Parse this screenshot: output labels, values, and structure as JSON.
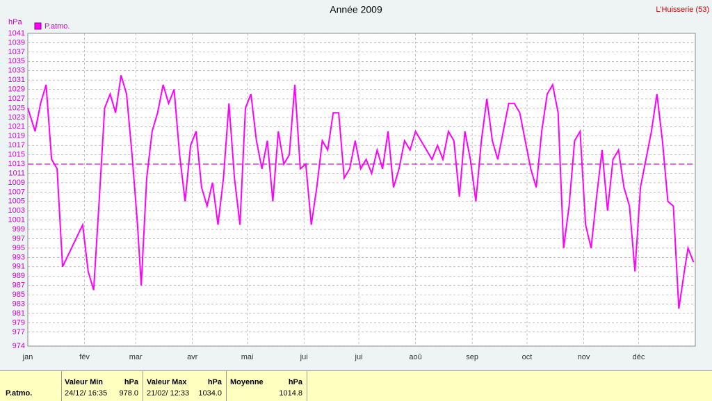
{
  "chart_data": {
    "type": "line",
    "title": "Année 2009",
    "station": "L'Huisserie (53)",
    "y_unit": "hPa",
    "grid": true,
    "xlim": [
      1,
      366
    ],
    "ylim": [
      974,
      1041
    ],
    "xticks": [
      {
        "value": 1,
        "label": "jan"
      },
      {
        "value": 32,
        "label": "fév"
      },
      {
        "value": 60,
        "label": "mar"
      },
      {
        "value": 91,
        "label": "avr"
      },
      {
        "value": 121,
        "label": "mai"
      },
      {
        "value": 152,
        "label": "jui"
      },
      {
        "value": 182,
        "label": "jui"
      },
      {
        "value": 213,
        "label": "aoû"
      },
      {
        "value": 244,
        "label": "sep"
      },
      {
        "value": 274,
        "label": "oct"
      },
      {
        "value": 305,
        "label": "nov"
      },
      {
        "value": 335,
        "label": "déc"
      }
    ],
    "yticks": [
      974,
      977,
      979,
      981,
      983,
      985,
      987,
      989,
      991,
      993,
      995,
      997,
      999,
      1001,
      1003,
      1005,
      1007,
      1009,
      1011,
      1013,
      1015,
      1017,
      1019,
      1021,
      1023,
      1025,
      1027,
      1029,
      1031,
      1033,
      1035,
      1037,
      1039,
      1041
    ],
    "reference_line": 1013,
    "x": [
      1,
      5,
      8,
      11,
      14,
      17,
      20,
      31,
      34,
      37,
      40,
      43,
      46,
      49,
      52,
      55,
      58,
      61,
      63,
      66,
      69,
      72,
      75,
      78,
      81,
      84,
      87,
      90,
      93,
      96,
      99,
      102,
      105,
      108,
      111,
      114,
      117,
      120,
      123,
      126,
      129,
      132,
      135,
      138,
      141,
      144,
      147,
      150,
      153,
      156,
      159,
      162,
      165,
      168,
      171,
      174,
      177,
      180,
      183,
      186,
      189,
      192,
      195,
      198,
      201,
      204,
      207,
      210,
      213,
      216,
      219,
      222,
      225,
      228,
      231,
      234,
      237,
      240,
      243,
      246,
      249,
      252,
      255,
      258,
      261,
      264,
      267,
      270,
      273,
      276,
      279,
      282,
      285,
      288,
      291,
      294,
      297,
      300,
      303,
      306,
      309,
      312,
      315,
      318,
      321,
      324,
      327,
      330,
      333,
      336,
      339,
      342,
      345,
      348,
      351,
      354,
      357,
      360,
      362,
      365
    ],
    "series": [
      {
        "name": "P.atmo.",
        "color": "#ff00ff",
        "values": [
          1025,
          1020,
          1026,
          1030,
          1014,
          1012,
          991,
          1000,
          990,
          986,
          1005,
          1025,
          1028,
          1024,
          1032,
          1028,
          1015,
          1000,
          987,
          1010,
          1020,
          1024,
          1030,
          1026,
          1029,
          1015,
          1005,
          1017,
          1020,
          1008,
          1004,
          1009,
          1000,
          1010,
          1026,
          1010,
          1000,
          1025,
          1028,
          1018,
          1012,
          1018,
          1005,
          1020,
          1013,
          1015,
          1030,
          1012,
          1013,
          1000,
          1008,
          1018,
          1016,
          1024,
          1024,
          1010,
          1012,
          1018,
          1012,
          1014,
          1011,
          1016,
          1012,
          1020,
          1008,
          1012,
          1018,
          1016,
          1020,
          1018,
          1016,
          1014,
          1017,
          1014,
          1020,
          1018,
          1006,
          1020,
          1014,
          1005,
          1018,
          1027,
          1018,
          1014,
          1020,
          1026,
          1026,
          1024,
          1018,
          1012,
          1008,
          1020,
          1028,
          1030,
          1024,
          995,
          1004,
          1018,
          1020,
          1000,
          995,
          1006,
          1016,
          1003,
          1014,
          1016,
          1008,
          1004,
          990,
          1008,
          1014,
          1020,
          1028,
          1018,
          1005,
          1004,
          982,
          990,
          995,
          992
        ]
      }
    ]
  },
  "summary": {
    "label": "P.atmo.",
    "columns": [
      {
        "title": "Valeur Min",
        "unit": "hPa",
        "date": "24/12/ 16:35",
        "value": "978.0"
      },
      {
        "title": "Valeur Max",
        "unit": "hPa",
        "date": "21/02/ 12:33",
        "value": "1034.0"
      },
      {
        "title": "Moyenne",
        "unit": "hPa",
        "value": "1014.8"
      }
    ]
  }
}
